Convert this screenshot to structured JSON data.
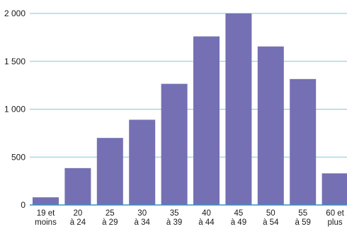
{
  "chart_data": {
    "type": "bar",
    "title": "",
    "xlabel": "",
    "ylabel": "",
    "categories": [
      [
        "19 et",
        "moins"
      ],
      [
        "20",
        "à 24"
      ],
      [
        "25",
        "à 29"
      ],
      [
        "30",
        "à 34"
      ],
      [
        "35",
        "à 39"
      ],
      [
        "40",
        "à 44"
      ],
      [
        "45",
        "à 49"
      ],
      [
        "50",
        "à 54"
      ],
      [
        "55",
        "à 59"
      ],
      [
        "60 et",
        "plus"
      ]
    ],
    "values": [
      80,
      385,
      700,
      890,
      1265,
      1760,
      2000,
      1655,
      1315,
      330
    ],
    "ylim": [
      0,
      2000
    ],
    "yticks": [
      0,
      500,
      1000,
      1500,
      2000
    ],
    "ytick_labels": [
      "0",
      "500",
      "1 000",
      "1 500",
      "2 000"
    ],
    "grid": true,
    "colors": {
      "bar": "#7570b3",
      "grid": "#7fc8e6",
      "axis": "#2f93c6"
    }
  }
}
